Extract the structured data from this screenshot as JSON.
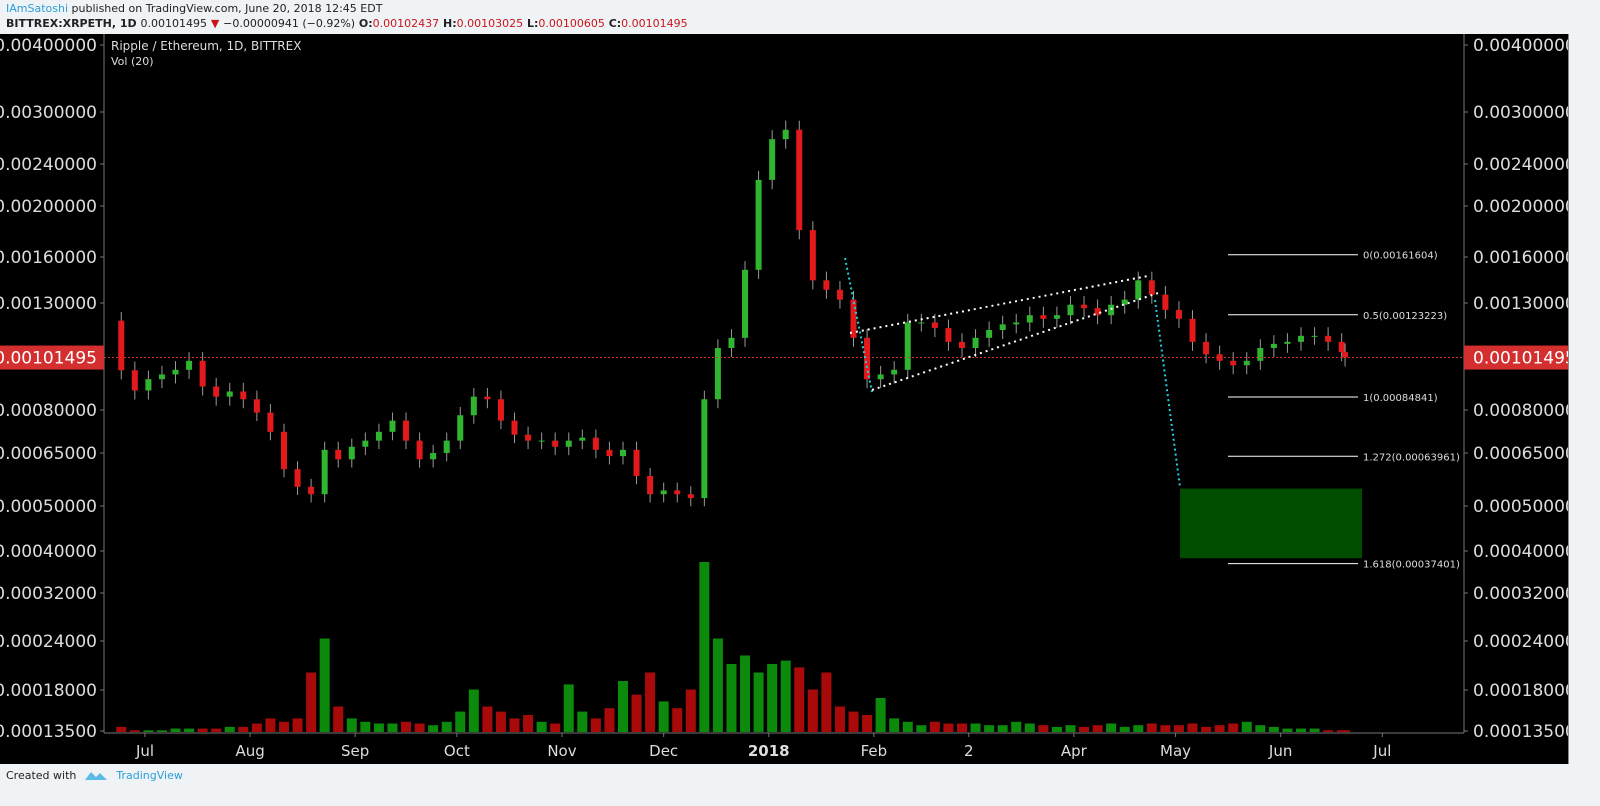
{
  "header": {
    "author": "IAmSatoshi",
    "published": "published on TradingView.com, June 20, 2018 12:45 EDT",
    "symbol": "BITTREX:XRPETH, 1D",
    "last": "0.00101495",
    "change": "−0.00000941 (−0.92%)",
    "o_label": "O:",
    "o": "0.00102437",
    "h_label": "H:",
    "h": "0.00103025",
    "l_label": "L:",
    "l": "0.00100605",
    "c_label": "C:",
    "c": "0.00101495"
  },
  "legend": {
    "title": "Ripple / Ethereum, 1D, BITTREX",
    "volume": "Vol (20)"
  },
  "footer": {
    "created_with": "Created with",
    "brand": "TradingView"
  },
  "colors": {
    "up": "#2fb52f",
    "down": "#e3191c",
    "vol_up": "#0b8a0b",
    "vol_down": "#a80a0a",
    "last_price": "#d32f2f",
    "fib": "#ffffff",
    "target_zone": "#004d00",
    "trend_dotted": "#20d0e0"
  },
  "chart_data": {
    "type": "candlestick",
    "scale": "log",
    "grid": false,
    "price_ticks": [
      "0.00400000",
      "0.00300000",
      "0.00240000",
      "0.00200000",
      "0.00160000",
      "0.00130000",
      "0.00080000",
      "0.00065000",
      "0.00050000",
      "0.00040000",
      "0.00032000",
      "0.00024000",
      "0.00018000",
      "0.00013500"
    ],
    "last_price_label": "0.00101495",
    "last_price": 0.00101495,
    "time_ticks": [
      {
        "label": "Jul",
        "date": "2017-07-01"
      },
      {
        "label": "Aug",
        "date": "2017-08-01"
      },
      {
        "label": "Sep",
        "date": "2017-09-01"
      },
      {
        "label": "Oct",
        "date": "2017-10-01"
      },
      {
        "label": "Nov",
        "date": "2017-11-01"
      },
      {
        "label": "Dec",
        "date": "2017-12-01"
      },
      {
        "label": "2018",
        "date": "2018-01-01"
      },
      {
        "label": "Feb",
        "date": "2018-02-01"
      },
      {
        "label": "2",
        "date": "2018-03-01"
      },
      {
        "label": "Apr",
        "date": "2018-04-01"
      },
      {
        "label": "May",
        "date": "2018-05-01"
      },
      {
        "label": "Jun",
        "date": "2018-06-01"
      },
      {
        "label": "Jul",
        "date": "2018-07-01"
      }
    ],
    "first_open": 0.0012,
    "candles": [
      [
        "2017-06-24",
        0.000958
      ],
      [
        "2017-06-28",
        0.000874
      ],
      [
        "2017-07-02",
        0.00092
      ],
      [
        "2017-07-06",
        0.00094
      ],
      [
        "2017-07-10",
        0.00096
      ],
      [
        "2017-07-14",
        0.001
      ],
      [
        "2017-07-18",
        0.00089
      ],
      [
        "2017-07-22",
        0.00085
      ],
      [
        "2017-07-26",
        0.00087
      ],
      [
        "2017-07-30",
        0.00084
      ],
      [
        "2017-08-03",
        0.00079
      ],
      [
        "2017-08-07",
        0.00072
      ],
      [
        "2017-08-11",
        0.0006
      ],
      [
        "2017-08-15",
        0.00055
      ],
      [
        "2017-08-19",
        0.00053
      ],
      [
        "2017-08-23",
        0.00066
      ],
      [
        "2017-08-27",
        0.00063
      ],
      [
        "2017-08-31",
        0.00067
      ],
      [
        "2017-09-04",
        0.00069
      ],
      [
        "2017-09-08",
        0.00072
      ],
      [
        "2017-09-12",
        0.00076
      ],
      [
        "2017-09-16",
        0.00069
      ],
      [
        "2017-09-20",
        0.00063
      ],
      [
        "2017-09-24",
        0.00065
      ],
      [
        "2017-09-28",
        0.00069
      ],
      [
        "2017-10-02",
        0.00078
      ],
      [
        "2017-10-06",
        0.00085
      ],
      [
        "2017-10-10",
        0.00084
      ],
      [
        "2017-10-14",
        0.00076
      ],
      [
        "2017-10-18",
        0.00071
      ],
      [
        "2017-10-22",
        0.00069
      ],
      [
        "2017-10-26",
        0.00069
      ],
      [
        "2017-10-30",
        0.00067
      ],
      [
        "2017-11-03",
        0.00069
      ],
      [
        "2017-11-07",
        0.0007
      ],
      [
        "2017-11-11",
        0.00066
      ],
      [
        "2017-11-15",
        0.00064
      ],
      [
        "2017-11-19",
        0.00066
      ],
      [
        "2017-11-23",
        0.00058
      ],
      [
        "2017-11-27",
        0.00053
      ],
      [
        "2017-12-01",
        0.00054
      ],
      [
        "2017-12-05",
        0.00053
      ],
      [
        "2017-12-09",
        0.00052
      ],
      [
        "2017-12-13",
        0.00084
      ],
      [
        "2017-12-17",
        0.00106
      ],
      [
        "2017-12-21",
        0.00111
      ],
      [
        "2017-12-25",
        0.00151
      ],
      [
        "2017-12-29",
        0.00224
      ],
      [
        "2018-01-02",
        0.00267
      ],
      [
        "2018-01-06",
        0.00278
      ],
      [
        "2018-01-10",
        0.0018
      ],
      [
        "2018-01-14",
        0.00144
      ],
      [
        "2018-01-18",
        0.00138
      ],
      [
        "2018-01-22",
        0.00132
      ],
      [
        "2018-01-26",
        0.00111
      ],
      [
        "2018-01-30",
        0.00092
      ],
      [
        "2018-02-03",
        0.00094
      ],
      [
        "2018-02-07",
        0.00096
      ],
      [
        "2018-02-11",
        0.00119
      ],
      [
        "2018-02-15",
        0.00119
      ],
      [
        "2018-02-19",
        0.00116
      ],
      [
        "2018-02-23",
        0.00109
      ],
      [
        "2018-02-27",
        0.00106
      ],
      [
        "2018-03-03",
        0.00111
      ],
      [
        "2018-03-07",
        0.00115
      ],
      [
        "2018-03-11",
        0.00118
      ],
      [
        "2018-03-15",
        0.00119
      ],
      [
        "2018-03-19",
        0.00123
      ],
      [
        "2018-03-23",
        0.00121
      ],
      [
        "2018-03-27",
        0.00123
      ],
      [
        "2018-03-31",
        0.00129
      ],
      [
        "2018-04-04",
        0.00127
      ],
      [
        "2018-04-08",
        0.00123
      ],
      [
        "2018-04-12",
        0.00129
      ],
      [
        "2018-04-16",
        0.00132
      ],
      [
        "2018-04-20",
        0.00144
      ],
      [
        "2018-04-24",
        0.00135
      ],
      [
        "2018-04-28",
        0.00126
      ],
      [
        "2018-05-02",
        0.00121
      ],
      [
        "2018-05-06",
        0.00109
      ],
      [
        "2018-05-10",
        0.00103
      ],
      [
        "2018-05-14",
        0.001
      ],
      [
        "2018-05-18",
        0.00098
      ],
      [
        "2018-05-22",
        0.001
      ],
      [
        "2018-05-26",
        0.00106
      ],
      [
        "2018-05-30",
        0.00108
      ],
      [
        "2018-06-03",
        0.00109
      ],
      [
        "2018-06-07",
        0.00112
      ],
      [
        "2018-06-11",
        0.00112
      ],
      [
        "2018-06-15",
        0.00109
      ],
      [
        "2018-06-19",
        0.00104
      ],
      [
        "2018-06-20",
        0.00101495
      ]
    ],
    "volume_relative_pct": [
      3,
      1,
      1,
      1,
      2,
      2,
      2,
      2,
      3,
      3,
      5,
      8,
      6,
      8,
      35,
      55,
      15,
      8,
      6,
      5,
      5,
      6,
      5,
      4,
      6,
      12,
      25,
      15,
      12,
      8,
      10,
      6,
      5,
      28,
      12,
      8,
      14,
      30,
      22,
      35,
      18,
      14,
      25,
      100,
      55,
      40,
      45,
      35,
      40,
      42,
      38,
      25,
      35,
      15,
      12,
      10,
      20,
      8,
      6,
      4,
      6,
      5,
      5,
      5,
      4,
      4,
      6,
      5,
      4,
      3,
      4,
      3,
      4,
      5,
      3,
      4,
      5,
      4,
      4,
      5,
      3,
      4,
      5,
      6,
      4,
      3,
      2,
      2,
      2,
      1,
      1,
      1
    ],
    "fib_levels": [
      {
        "label": "0(0.00161604)",
        "price": 0.00161604
      },
      {
        "label": "0.5(0.00123223)",
        "price": 0.00123223
      },
      {
        "label": "1(0.00084841)",
        "price": 0.00084841
      },
      {
        "label": "1.272(0.00063961)",
        "price": 0.00063961
      },
      {
        "label": "1.618(0.00037401)",
        "price": 0.00037401
      }
    ],
    "target_zone": {
      "price_top": 0.000545,
      "price_bottom": 0.000385
    }
  }
}
